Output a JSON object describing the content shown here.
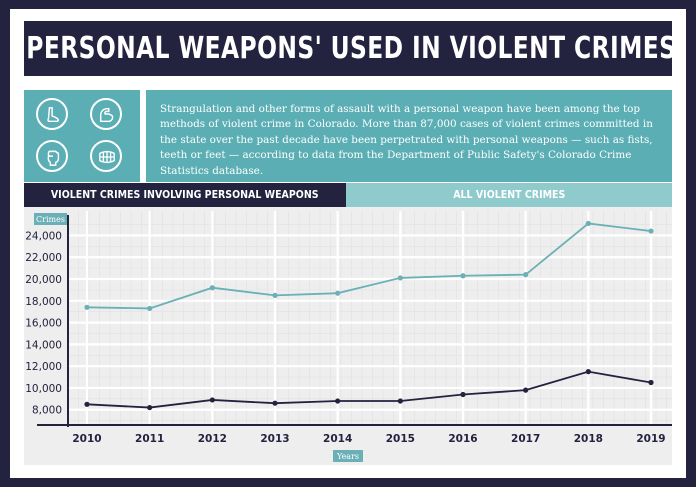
{
  "title": "'PERSONAL WEAPONS' USED IN VIOLENT CRIMES",
  "description": "Strangulation and other forms of assault with a personal weapon have been among the top methods of violent crime in Colorado. More than 87,000 cases of violent crimes committed in the state over the past decade have been perpetrated with personal weapons — such as fists, teeth or feet — according to data from the Department of Public Safety's Colorado Crime Statistics database.",
  "icons": [
    "foot-icon",
    "flexed-arm-icon",
    "fist-icon",
    "teeth-icon"
  ],
  "colors": {
    "navy": "#23223f",
    "teal": "#5aaeb4",
    "light_teal": "#8fcacd",
    "series_all": "#6ab0b6",
    "series_personal": "#23223f"
  },
  "chart_data": {
    "type": "line",
    "title": "'PERSONAL WEAPONS' USED IN VIOLENT CRIMES",
    "ylabel": "Crimes",
    "xlabel": "Years",
    "ylim": [
      6600,
      25600
    ],
    "yticks": [
      8000,
      10000,
      12000,
      14000,
      16000,
      18000,
      20000,
      22000,
      24000
    ],
    "ytick_labels": [
      "8,000",
      "10,000",
      "12,000",
      "14,000",
      "16,000",
      "18,000",
      "20,000",
      "22,000",
      "24,000"
    ],
    "x": [
      "2010",
      "2011",
      "2012",
      "2013",
      "2014",
      "2015",
      "2016",
      "2017",
      "2018",
      "2019"
    ],
    "grid": true,
    "series": [
      {
        "name": "VIOLENT CRIMES INVOLVING PERSONAL WEAPONS",
        "color": "#23223f",
        "values": [
          8500,
          8200,
          8900,
          8600,
          8800,
          8800,
          9400,
          9800,
          11500,
          10500
        ]
      },
      {
        "name": "ALL VIOLENT CRIMES",
        "color": "#6ab0b6",
        "values": [
          17400,
          17300,
          19200,
          18500,
          18700,
          20100,
          20300,
          20400,
          25100,
          24400
        ]
      }
    ]
  }
}
